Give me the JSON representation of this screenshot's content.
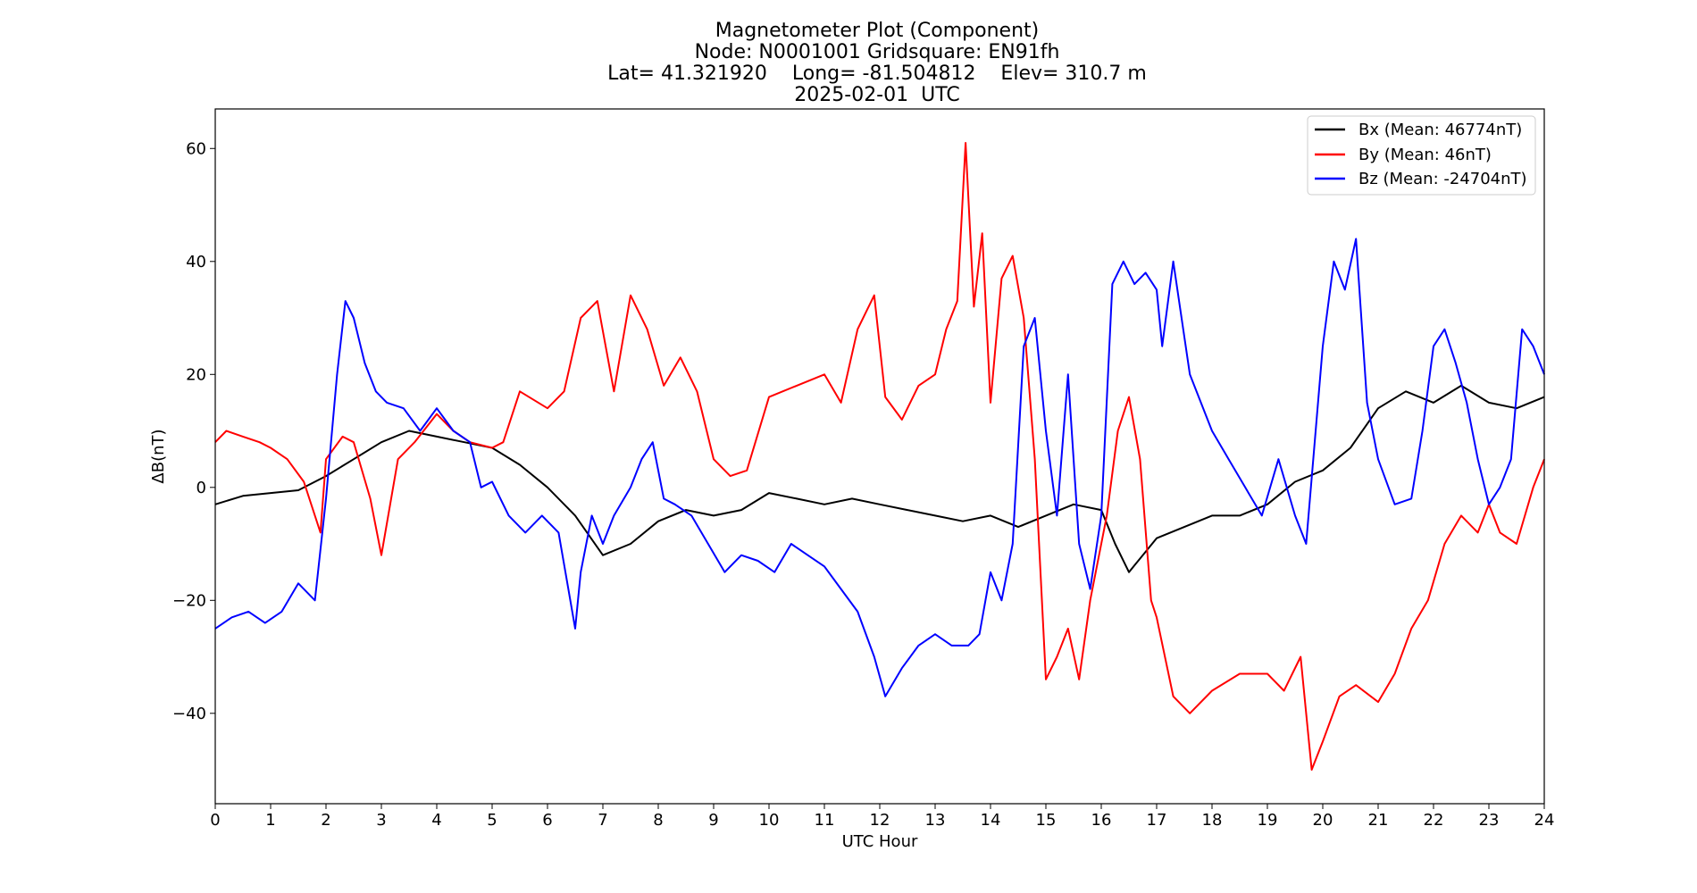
{
  "chart_data": {
    "type": "line",
    "title_lines": [
      "Magnetometer Plot (Component)",
      "Node:  N0001001     Gridsquare:  EN91fh",
      "Lat= 41.321920    Long= -81.504812    Elev= 310.7 m",
      "2025-02-01  UTC"
    ],
    "xlabel": "UTC Hour",
    "ylabel": "ΔB(nT)",
    "xlim": [
      0,
      24
    ],
    "ylim": [
      -56,
      67
    ],
    "x_ticks": [
      0,
      1,
      2,
      3,
      4,
      5,
      6,
      7,
      8,
      9,
      10,
      11,
      12,
      13,
      14,
      15,
      16,
      17,
      18,
      19,
      20,
      21,
      22,
      23,
      24
    ],
    "y_ticks": [
      -40,
      -20,
      0,
      20,
      40,
      60
    ],
    "y_tick_labels": [
      "−40",
      "−20",
      "0",
      "20",
      "40",
      "60"
    ],
    "grid": false,
    "legend_position": "top-right",
    "series": [
      {
        "name": "Bx (Mean: 46774nT)",
        "color": "#000000",
        "x": [
          0,
          0.5,
          1,
          1.5,
          2,
          2.5,
          3,
          3.5,
          4,
          4.5,
          5,
          5.5,
          6,
          6.5,
          7,
          7.5,
          8,
          8.5,
          9,
          9.5,
          10,
          10.5,
          11,
          11.5,
          12,
          12.5,
          13,
          13.5,
          14,
          14.5,
          15,
          15.5,
          16,
          16.25,
          16.5,
          16.75,
          17,
          17.5,
          18,
          18.5,
          19,
          19.5,
          20,
          20.5,
          21,
          21.5,
          22,
          22.5,
          23,
          23.5,
          24
        ],
        "y": [
          -3,
          -1.5,
          -1,
          -0.5,
          2,
          5,
          8,
          10,
          9,
          8,
          7,
          4,
          0,
          -5,
          -12,
          -10,
          -6,
          -4,
          -5,
          -4,
          -1,
          -2,
          -3,
          -2,
          -3,
          -4,
          -5,
          -6,
          -5,
          -7,
          -5,
          -3,
          -4,
          -10,
          -15,
          -12,
          -9,
          -7,
          -5,
          -5,
          -3,
          1,
          3,
          7,
          14,
          17,
          15,
          18,
          15,
          14,
          16
        ]
      },
      {
        "name": "By (Mean: 46nT)",
        "color": "#ff0000",
        "x": [
          0,
          0.2,
          0.5,
          0.8,
          1,
          1.3,
          1.6,
          1.9,
          2,
          2.3,
          2.5,
          2.8,
          3,
          3.3,
          3.6,
          4,
          4.3,
          4.6,
          5,
          5.2,
          5.5,
          6,
          6.3,
          6.6,
          6.9,
          7.2,
          7.5,
          7.8,
          8.1,
          8.4,
          8.7,
          9,
          9.3,
          9.6,
          10,
          10.5,
          11,
          11.3,
          11.6,
          11.9,
          12.1,
          12.4,
          12.7,
          13,
          13.2,
          13.4,
          13.55,
          13.7,
          13.85,
          14,
          14.2,
          14.4,
          14.6,
          14.8,
          15,
          15.2,
          15.4,
          15.6,
          15.8,
          16.1,
          16.3,
          16.5,
          16.7,
          16.9,
          17,
          17.3,
          17.6,
          18,
          18.5,
          19,
          19.3,
          19.6,
          19.8,
          20,
          20.3,
          20.6,
          21,
          21.3,
          21.6,
          21.9,
          22.2,
          22.5,
          22.8,
          23,
          23.2,
          23.5,
          23.8,
          24
        ],
        "y": [
          8,
          10,
          9,
          8,
          7,
          5,
          1,
          -8,
          5,
          9,
          8,
          -2,
          -12,
          5,
          8,
          13,
          10,
          8,
          7,
          8,
          17,
          14,
          17,
          30,
          33,
          17,
          34,
          28,
          18,
          23,
          17,
          5,
          2,
          3,
          16,
          18,
          20,
          15,
          28,
          34,
          16,
          12,
          18,
          20,
          28,
          33,
          61,
          32,
          45,
          15,
          37,
          41,
          30,
          5,
          -34,
          -30,
          -25,
          -34,
          -20,
          -5,
          10,
          16,
          5,
          -20,
          -23,
          -37,
          -40,
          -36,
          -33,
          -33,
          -36,
          -30,
          -50,
          -45,
          -37,
          -35,
          -38,
          -33,
          -25,
          -20,
          -10,
          -5,
          -8,
          -3,
          -8,
          -10,
          0,
          5
        ]
      },
      {
        "name": "Bz (Mean: -24704nT)",
        "color": "#0000ff",
        "x": [
          0,
          0.3,
          0.6,
          0.9,
          1.2,
          1.5,
          1.8,
          2,
          2.2,
          2.35,
          2.5,
          2.7,
          2.9,
          3.1,
          3.4,
          3.7,
          4,
          4.3,
          4.6,
          4.8,
          5,
          5.3,
          5.6,
          5.9,
          6.2,
          6.5,
          6.6,
          6.8,
          7,
          7.2,
          7.5,
          7.7,
          7.9,
          8.1,
          8.3,
          8.6,
          8.9,
          9.2,
          9.5,
          9.8,
          10.1,
          10.4,
          10.7,
          11,
          11.3,
          11.6,
          11.9,
          12.1,
          12.4,
          12.7,
          13,
          13.3,
          13.6,
          13.8,
          14,
          14.2,
          14.4,
          14.6,
          14.8,
          15,
          15.2,
          15.4,
          15.6,
          15.8,
          16,
          16.2,
          16.4,
          16.6,
          16.8,
          17,
          17.1,
          17.3,
          17.6,
          17.8,
          18,
          18.3,
          18.6,
          18.9,
          19.2,
          19.5,
          19.7,
          20,
          20.2,
          20.4,
          20.6,
          20.8,
          21,
          21.3,
          21.6,
          21.8,
          22,
          22.2,
          22.4,
          22.6,
          22.8,
          23,
          23.2,
          23.4,
          23.6,
          23.8,
          24
        ],
        "y": [
          -25,
          -23,
          -22,
          -24,
          -22,
          -17,
          -20,
          -2,
          20,
          33,
          30,
          22,
          17,
          15,
          14,
          10,
          14,
          10,
          8,
          0,
          1,
          -5,
          -8,
          -5,
          -8,
          -25,
          -15,
          -5,
          -10,
          -5,
          0,
          5,
          8,
          -2,
          -3,
          -5,
          -10,
          -15,
          -12,
          -13,
          -15,
          -10,
          -12,
          -14,
          -18,
          -22,
          -30,
          -37,
          -32,
          -28,
          -26,
          -28,
          -28,
          -26,
          -15,
          -20,
          -10,
          25,
          30,
          10,
          -5,
          20,
          -10,
          -18,
          -5,
          36,
          40,
          36,
          38,
          35,
          25,
          40,
          20,
          15,
          10,
          5,
          0,
          -5,
          5,
          -5,
          -10,
          25,
          40,
          35,
          44,
          15,
          5,
          -3,
          -2,
          10,
          25,
          28,
          22,
          15,
          5,
          -3,
          0,
          5,
          28,
          25,
          20
        ]
      }
    ]
  }
}
